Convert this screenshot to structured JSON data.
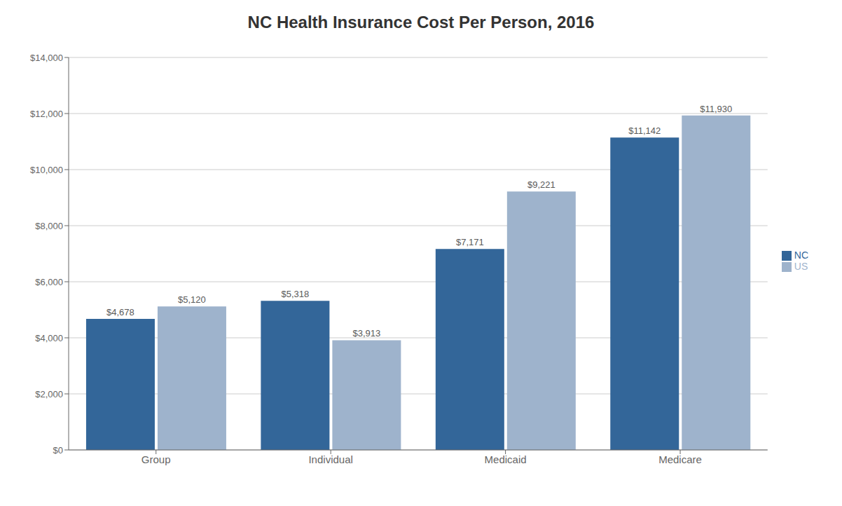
{
  "chart_data": {
    "type": "bar",
    "title": "NC Health Insurance Cost Per Person, 2016",
    "categories": [
      "Group",
      "Individual",
      "Medicaid",
      "Medicare"
    ],
    "series": [
      {
        "name": "NC",
        "color": "#336699",
        "values": [
          4678,
          5318,
          7171,
          11142
        ],
        "value_labels": [
          "$4,678",
          "$5,318",
          "$7,171",
          "$11,142"
        ]
      },
      {
        "name": "US",
        "color": "#9EB3CC",
        "values": [
          5120,
          3913,
          9221,
          11930
        ],
        "value_labels": [
          "$5,120",
          "$3,913",
          "$9,221",
          "$11,930"
        ]
      }
    ],
    "ylim": [
      0,
      14000
    ],
    "yticks": [
      {
        "value": 0,
        "label": "$0"
      },
      {
        "value": 2000,
        "label": "$2,000"
      },
      {
        "value": 4000,
        "label": "$4,000"
      },
      {
        "value": 6000,
        "label": "$6,000"
      },
      {
        "value": 8000,
        "label": "$8,000"
      },
      {
        "value": 10000,
        "label": "$10,000"
      },
      {
        "value": 12000,
        "label": "$12,000"
      },
      {
        "value": 14000,
        "label": "$14,000"
      }
    ],
    "grid": true,
    "legend": "right",
    "data_labels": true
  }
}
